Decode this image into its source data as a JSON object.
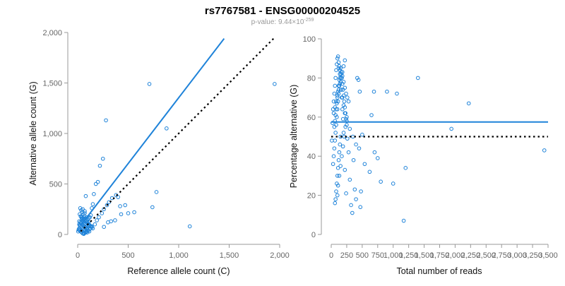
{
  "figure": {
    "title": "rs7767581 - ENSG00000204525",
    "subtitle_prefix": "p-value: 9.44×10",
    "subtitle_exponent": "-259"
  },
  "colors": {
    "points": "#1f83d9",
    "fit_line": "#1f83d9",
    "reference_line": "#000000",
    "axis": "#999999",
    "tick_label": "#666666"
  },
  "chart_data": [
    {
      "type": "scatter",
      "xlabel": "Reference allele count (C)",
      "ylabel": "Alternative allele count (G)",
      "xlim": [
        0,
        2000
      ],
      "ylim": [
        0,
        2000
      ],
      "xticks": [
        0,
        500,
        1000,
        1500,
        2000
      ],
      "yticks": [
        0,
        500,
        1000,
        1500,
        2000
      ],
      "xtick_labels": [
        "0",
        "500",
        "1,000",
        "1,500",
        "2,000"
      ],
      "ytick_labels": [
        "0",
        "500",
        "1,000",
        "1,500",
        "2,000"
      ],
      "grid": false,
      "fit_line": {
        "x": [
          30,
          1450
        ],
        "y": [
          90,
          1940
        ],
        "style": "solid"
      },
      "reference_line": {
        "x": [
          30,
          1940
        ],
        "y": [
          30,
          1940
        ],
        "style": "dotted"
      },
      "points": {
        "x": [
          710,
          280,
          880,
          1950,
          1110,
          780,
          740,
          560,
          470,
          420,
          500,
          430,
          370,
          330,
          300,
          260,
          250,
          220,
          200,
          180,
          160,
          150,
          140,
          130,
          120,
          110,
          100,
          90,
          80,
          70,
          60,
          50,
          40,
          30,
          20,
          15,
          10,
          5,
          60,
          80,
          100,
          120,
          140,
          170,
          190,
          210,
          240,
          260,
          290,
          310,
          340,
          380,
          400,
          50,
          70,
          90,
          110,
          130,
          25,
          35,
          45,
          55,
          65,
          75,
          85,
          95,
          105,
          115,
          125,
          20,
          30,
          40,
          50,
          60,
          70,
          80,
          90,
          10,
          20,
          30,
          40,
          50,
          60,
          70,
          80,
          15,
          25,
          35,
          45,
          55,
          65,
          75,
          85,
          95,
          15,
          25,
          35,
          45,
          55,
          65,
          75,
          85,
          95,
          105,
          115,
          30,
          40,
          50,
          60,
          70,
          80,
          90,
          100,
          110,
          120,
          130,
          140,
          150
        ],
        "y": [
          1490,
          1130,
          1050,
          1490,
          80,
          420,
          270,
          220,
          290,
          280,
          210,
          200,
          140,
          130,
          120,
          75,
          750,
          680,
          520,
          500,
          400,
          300,
          260,
          190,
          170,
          160,
          150,
          140,
          380,
          230,
          160,
          140,
          120,
          110,
          90,
          60,
          45,
          30,
          10,
          20,
          40,
          60,
          80,
          100,
          140,
          170,
          210,
          250,
          290,
          320,
          360,
          390,
          370,
          250,
          210,
          170,
          120,
          80,
          260,
          240,
          220,
          200,
          180,
          160,
          140,
          120,
          100,
          80,
          60,
          200,
          180,
          160,
          140,
          120,
          100,
          80,
          60,
          50,
          40,
          30,
          20,
          10,
          5,
          15,
          25,
          100,
          90,
          80,
          70,
          60,
          50,
          40,
          30,
          20,
          130,
          120,
          110,
          100,
          90,
          80,
          70,
          60,
          50,
          40,
          30,
          180,
          170,
          160,
          150,
          140,
          130,
          120,
          110,
          100,
          90,
          80,
          70,
          60
        ]
      }
    },
    {
      "type": "scatter",
      "xlabel": "Total number of reads",
      "ylabel": "Percentage alternative (G)",
      "xlim": [
        0,
        3500
      ],
      "ylim": [
        0,
        100
      ],
      "xticks": [
        0,
        250,
        500,
        750,
        1000,
        1250,
        1500,
        1750,
        2000,
        2250,
        2500,
        2750,
        3000,
        3250,
        3500
      ],
      "yticks": [
        0,
        20,
        40,
        60,
        80,
        100
      ],
      "xtick_labels": [
        "0",
        "250",
        "500",
        "750",
        "1,000",
        "1,250",
        "1,500",
        "1,750",
        "2,000",
        "2,250",
        "2,500",
        "2,750",
        "3,000",
        "3,250",
        "3,500"
      ],
      "ytick_labels": [
        "0",
        "20",
        "40",
        "60",
        "80",
        "100"
      ],
      "grid": false,
      "fit_line": {
        "x": [
          0,
          3500
        ],
        "y": [
          57.5,
          57.5
        ],
        "style": "solid"
      },
      "reference_line": {
        "x": [
          0,
          3500
        ],
        "y": [
          50,
          50
        ],
        "style": "dotted"
      },
      "points": {
        "x": [
          1400,
          2220,
          1940,
          3440,
          1200,
          1170,
          1060,
          1000,
          900,
          800,
          750,
          700,
          690,
          650,
          620,
          540,
          500,
          480,
          470,
          460,
          440,
          420,
          400,
          380,
          360,
          340,
          320,
          300,
          280,
          260,
          240,
          220,
          200,
          190,
          180,
          170,
          160,
          150,
          140,
          130,
          120,
          110,
          100,
          90,
          80,
          70,
          60,
          50,
          40,
          30,
          20,
          10,
          120,
          140,
          160,
          180,
          200,
          220,
          240,
          260,
          280,
          100,
          110,
          130,
          150,
          170,
          190,
          210,
          230,
          250,
          60,
          70,
          80,
          90,
          100,
          110,
          120,
          130,
          140,
          150,
          30,
          40,
          50,
          60,
          70,
          80,
          90,
          100,
          110,
          120,
          130,
          140,
          160,
          180,
          200,
          220,
          250,
          300,
          350,
          400,
          450,
          50,
          60,
          70,
          80,
          90,
          100,
          110,
          120,
          130,
          140,
          150,
          160,
          170,
          180,
          190,
          200,
          210,
          220,
          230,
          240,
          250,
          40,
          60,
          80,
          100,
          120,
          140,
          160,
          180,
          200,
          220
        ],
        "y": [
          80,
          67,
          54,
          43,
          34,
          7,
          72,
          26,
          73,
          27,
          39,
          42,
          73,
          61,
          32,
          36,
          51,
          22,
          14,
          73,
          79,
          80,
          18,
          23,
          38,
          11,
          15,
          28,
          42,
          49,
          21,
          33,
          52,
          59,
          64,
          70,
          74,
          78,
          82,
          86,
          88,
          91,
          90,
          87,
          84,
          80,
          76,
          72,
          68,
          64,
          57,
          48,
          85,
          84,
          82,
          81,
          78,
          75,
          72,
          70,
          68,
          20,
          25,
          30,
          35,
          40,
          45,
          50,
          55,
          60,
          16,
          18,
          22,
          26,
          30,
          34,
          38,
          42,
          46,
          50,
          36,
          40,
          44,
          48,
          52,
          56,
          60,
          64,
          68,
          72,
          76,
          80,
          74,
          70,
          66,
          62,
          58,
          54,
          50,
          46,
          44,
          55,
          58,
          61,
          64,
          67,
          70,
          73,
          76,
          79,
          82,
          85,
          83,
          80,
          77,
          74,
          71,
          68,
          65,
          62,
          59,
          56,
          62,
          65,
          68,
          71,
          74,
          77,
          80,
          83,
          86,
          89
        ]
      }
    }
  ]
}
